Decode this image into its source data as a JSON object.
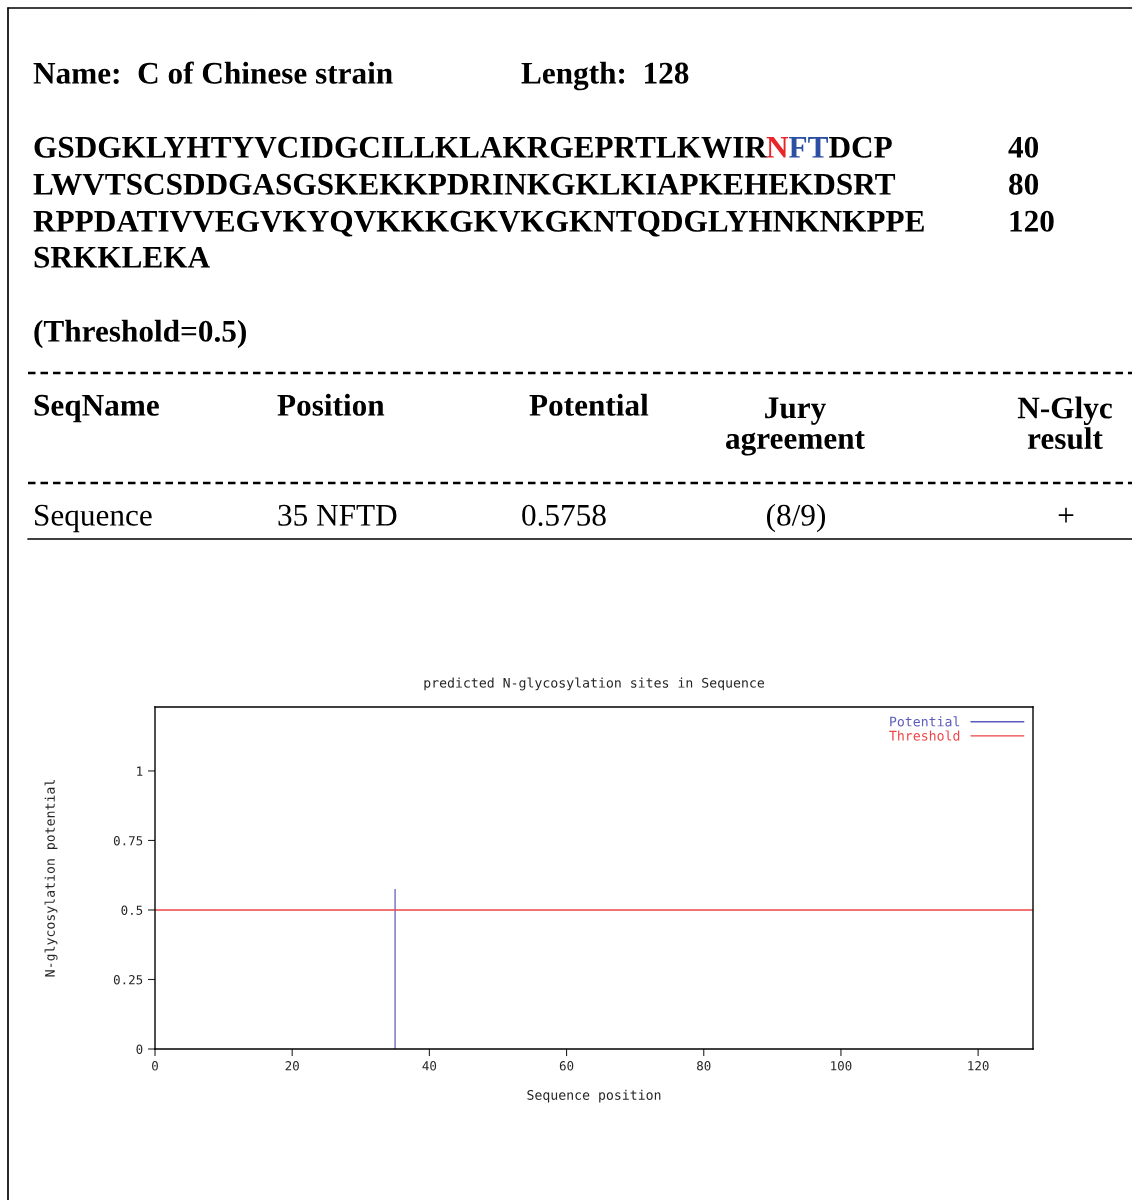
{
  "chart_data": {
    "type": "bar",
    "title": "predicted N-glycosylation sites in Sequence",
    "xlabel": "Sequence position",
    "ylabel": "N-glycosylation potential",
    "series": [
      {
        "name": "Potential",
        "color": "#5b5bbb",
        "x": [
          35
        ],
        "values": [
          0.5758
        ]
      }
    ],
    "ref_lines": [
      {
        "axis": "y",
        "value": 0.5,
        "label": "Threshold",
        "color": "#ee4444"
      }
    ],
    "xlim": [
      0,
      128
    ],
    "xticks": [
      0,
      20,
      40,
      60,
      80,
      100,
      120
    ],
    "ylim": [
      0,
      1.23
    ],
    "yticks": [
      0,
      0.25,
      0.5,
      0.75,
      1
    ],
    "legend": "top right",
    "grid": false,
    "annotations": [
      "Name:  C of Chinese strain",
      "Length:  128",
      "GSDGKLYHTYVCIDGCILLKLAKRGEPRTLKWIR",
      "N",
      "F",
      "T",
      "DCP",
      "40",
      "LWVTSCSDDGASGSKEKKPDRINKGKLKIAPKEHEKDSRT",
      "80",
      "RPPDATIVVEGVKYQVKKKGKVKGKNTQDGLYHNKNKPPE",
      "120",
      "SRKKLEKA",
      "(Threshold=0.5)",
      "SeqName",
      "Position",
      "Potential",
      "Jury\nagreement",
      "N-Glyc\nresult",
      "Sequence",
      "35 NFTD",
      "0.5758",
      "(8/9)",
      "+"
    ]
  }
}
